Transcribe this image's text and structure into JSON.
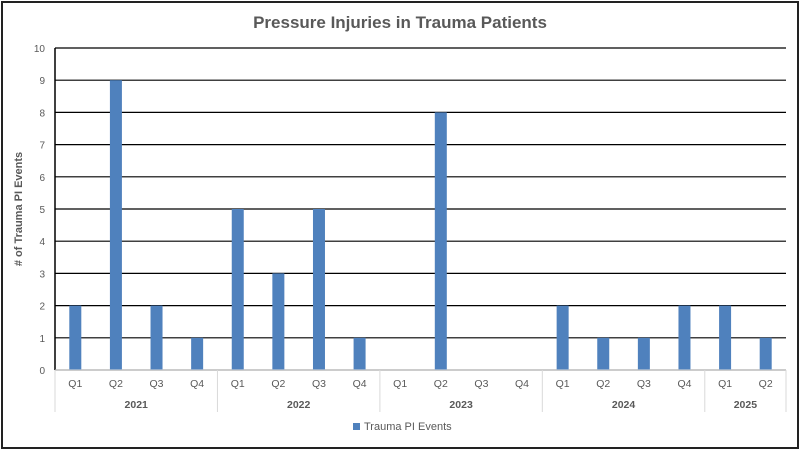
{
  "chart_data": {
    "type": "bar",
    "title": "Pressure Injuries in Trauma Patients",
    "xlabel": "",
    "ylabel": "# of Trauma PI Events",
    "ylim": [
      0,
      10
    ],
    "yticks": [
      0,
      1,
      2,
      3,
      4,
      5,
      6,
      7,
      8,
      9,
      10
    ],
    "grid": true,
    "legend_position": "bottom",
    "groups": [
      {
        "label": "2021",
        "categories": [
          "Q1",
          "Q2",
          "Q3",
          "Q4"
        ]
      },
      {
        "label": "2022",
        "categories": [
          "Q1",
          "Q2",
          "Q3",
          "Q4"
        ]
      },
      {
        "label": "2023",
        "categories": [
          "Q1",
          "Q2",
          "Q3",
          "Q4"
        ]
      },
      {
        "label": "2024",
        "categories": [
          "Q1",
          "Q2",
          "Q3",
          "Q4"
        ]
      },
      {
        "label": "2025",
        "categories": [
          "Q1",
          "Q2"
        ]
      }
    ],
    "series": [
      {
        "name": "Trauma PI Events",
        "color": "#4f81bd",
        "values": [
          2,
          9,
          2,
          1,
          5,
          3,
          5,
          1,
          0,
          8,
          0,
          0,
          2,
          1,
          1,
          2,
          2,
          1
        ]
      }
    ]
  }
}
